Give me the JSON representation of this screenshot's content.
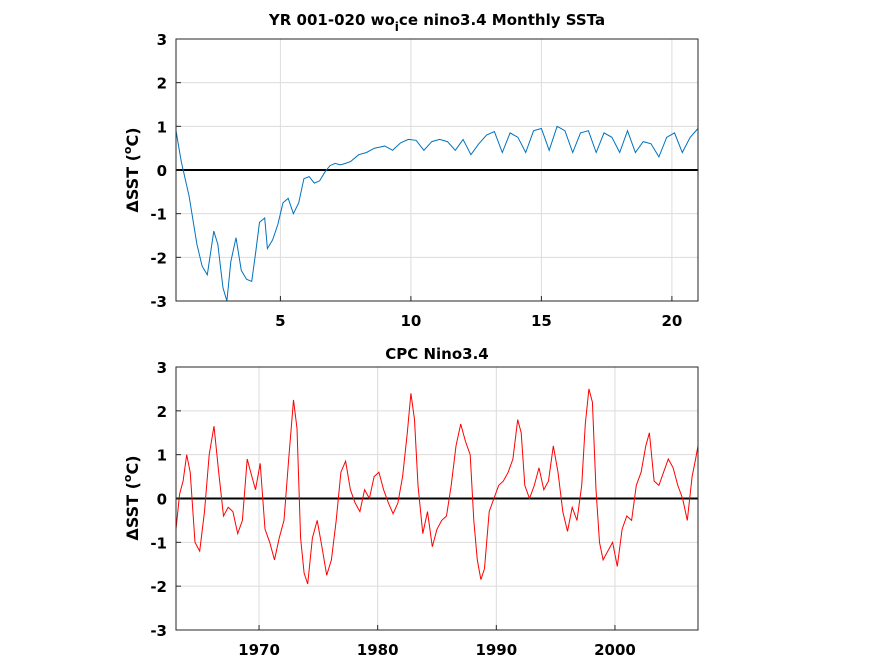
{
  "chart_data": [
    {
      "type": "line",
      "title": "YR 001-020 wo_ice nino3.4 Monthly SSTa",
      "title_parts": [
        "YR 001-020 wo",
        "i",
        "ce nino3.4 Monthly SSTa"
      ],
      "ylabel": "ΔSST (°C)",
      "ylabel_parts": [
        "ΔSST (",
        "o",
        "C)"
      ],
      "xlabel": "",
      "xlim": [
        1,
        21
      ],
      "ylim": [
        -3,
        3
      ],
      "xticks": [
        5,
        10,
        15,
        20
      ],
      "yticks": [
        -3,
        -2,
        -1,
        0,
        1,
        2,
        3
      ],
      "grid": true,
      "color": "#0072BD",
      "zero_line": 0,
      "series": [
        {
          "x": [
            1.0,
            1.2,
            1.5,
            1.8,
            2.0,
            2.2,
            2.45,
            2.6,
            2.8,
            2.95,
            3.1,
            3.3,
            3.5,
            3.7,
            3.9,
            4.05,
            4.2,
            4.4,
            4.5,
            4.7,
            4.9,
            5.1,
            5.3,
            5.5,
            5.7,
            5.9,
            6.1,
            6.3,
            6.5,
            6.7,
            6.9,
            7.1,
            7.3,
            7.5,
            7.7,
            8.0,
            8.3,
            8.6,
            9.0,
            9.3,
            9.6,
            9.9,
            10.2,
            10.5,
            10.8,
            11.1,
            11.4,
            11.7,
            12.0,
            12.3,
            12.6,
            12.9,
            13.2,
            13.5,
            13.8,
            14.1,
            14.4,
            14.7,
            15.0,
            15.3,
            15.6,
            15.9,
            16.2,
            16.5,
            16.8,
            17.1,
            17.4,
            17.7,
            18.0,
            18.3,
            18.6,
            18.9,
            19.2,
            19.5,
            19.8,
            20.1,
            20.4,
            20.7,
            21.0
          ],
          "values": [
            0.9,
            0.2,
            -0.6,
            -1.7,
            -2.2,
            -2.4,
            -1.4,
            -1.7,
            -2.7,
            -3.0,
            -2.1,
            -1.55,
            -2.3,
            -2.5,
            -2.55,
            -1.9,
            -1.2,
            -1.1,
            -1.8,
            -1.6,
            -1.25,
            -0.75,
            -0.65,
            -1.0,
            -0.75,
            -0.2,
            -0.15,
            -0.3,
            -0.25,
            -0.05,
            0.1,
            0.15,
            0.12,
            0.15,
            0.2,
            0.35,
            0.4,
            0.5,
            0.55,
            0.45,
            0.62,
            0.7,
            0.68,
            0.45,
            0.65,
            0.7,
            0.65,
            0.45,
            0.7,
            0.35,
            0.6,
            0.8,
            0.88,
            0.4,
            0.85,
            0.75,
            0.4,
            0.9,
            0.95,
            0.45,
            1.0,
            0.9,
            0.4,
            0.85,
            0.9,
            0.4,
            0.85,
            0.75,
            0.4,
            0.9,
            0.4,
            0.65,
            0.6,
            0.3,
            0.75,
            0.85,
            0.4,
            0.75,
            0.95
          ]
        }
      ]
    },
    {
      "type": "line",
      "title": "CPC Nino3.4",
      "ylabel": "ΔSST (°C)",
      "ylabel_parts": [
        "ΔSST (",
        "o",
        "C)"
      ],
      "xlabel": "",
      "xlim": [
        1963,
        2007
      ],
      "ylim": [
        -3,
        3
      ],
      "xticks": [
        1970,
        1980,
        1990,
        2000
      ],
      "yticks": [
        -3,
        -2,
        -1,
        0,
        1,
        2,
        3
      ],
      "grid": true,
      "color": "#FF0000",
      "zero_line": 0,
      "series": [
        {
          "x": [
            1963.0,
            1963.3,
            1963.6,
            1963.9,
            1964.2,
            1964.6,
            1965.0,
            1965.4,
            1965.8,
            1966.2,
            1966.6,
            1967.0,
            1967.4,
            1967.8,
            1968.2,
            1968.6,
            1969.0,
            1969.3,
            1969.7,
            1970.1,
            1970.5,
            1970.9,
            1971.3,
            1971.7,
            1972.1,
            1972.5,
            1972.9,
            1973.2,
            1973.5,
            1973.8,
            1974.1,
            1974.5,
            1974.9,
            1975.3,
            1975.7,
            1976.1,
            1976.5,
            1976.9,
            1977.3,
            1977.7,
            1978.1,
            1978.5,
            1978.9,
            1979.3,
            1979.7,
            1980.1,
            1980.5,
            1980.9,
            1981.3,
            1981.7,
            1982.1,
            1982.5,
            1982.8,
            1983.1,
            1983.4,
            1983.8,
            1984.2,
            1984.6,
            1985.0,
            1985.4,
            1985.8,
            1986.2,
            1986.6,
            1987.0,
            1987.4,
            1987.8,
            1988.1,
            1988.4,
            1988.7,
            1989.0,
            1989.4,
            1989.8,
            1990.2,
            1990.6,
            1991.0,
            1991.4,
            1991.8,
            1992.1,
            1992.4,
            1992.8,
            1993.2,
            1993.6,
            1994.0,
            1994.4,
            1994.8,
            1995.2,
            1995.6,
            1996.0,
            1996.4,
            1996.8,
            1997.2,
            1997.5,
            1997.8,
            1998.1,
            1998.4,
            1998.7,
            1999.0,
            1999.4,
            1999.8,
            2000.2,
            2000.6,
            2001.0,
            2001.4,
            2001.8,
            2002.2,
            2002.6,
            2002.9,
            2003.3,
            2003.7,
            2004.1,
            2004.5,
            2004.9,
            2005.3,
            2005.7,
            2006.1,
            2006.5,
            2006.8,
            2007.0
          ],
          "values": [
            -0.7,
            0.1,
            0.4,
            1.0,
            0.6,
            -1.0,
            -1.2,
            -0.3,
            1.0,
            1.65,
            0.6,
            -0.4,
            -0.2,
            -0.3,
            -0.8,
            -0.5,
            0.9,
            0.6,
            0.2,
            0.8,
            -0.7,
            -1.0,
            -1.4,
            -0.9,
            -0.5,
            0.9,
            2.25,
            1.6,
            -0.9,
            -1.7,
            -1.95,
            -0.9,
            -0.5,
            -1.1,
            -1.75,
            -1.4,
            -0.5,
            0.6,
            0.85,
            0.2,
            -0.1,
            -0.3,
            0.2,
            0.0,
            0.5,
            0.6,
            0.2,
            -0.1,
            -0.35,
            -0.1,
            0.5,
            1.5,
            2.4,
            1.8,
            0.3,
            -0.8,
            -0.3,
            -1.1,
            -0.7,
            -0.5,
            -0.4,
            0.3,
            1.2,
            1.7,
            1.3,
            1.0,
            -0.5,
            -1.4,
            -1.85,
            -1.6,
            -0.3,
            0.0,
            0.3,
            0.4,
            0.6,
            0.9,
            1.8,
            1.5,
            0.3,
            0.0,
            0.3,
            0.7,
            0.2,
            0.4,
            1.2,
            0.6,
            -0.3,
            -0.75,
            -0.2,
            -0.5,
            0.3,
            1.7,
            2.5,
            2.2,
            0.2,
            -1.0,
            -1.4,
            -1.2,
            -1.0,
            -1.55,
            -0.7,
            -0.4,
            -0.5,
            0.3,
            0.6,
            1.2,
            1.5,
            0.4,
            0.3,
            0.6,
            0.9,
            0.7,
            0.3,
            0.0,
            -0.5,
            0.5,
            0.9,
            1.2
          ]
        }
      ]
    }
  ]
}
